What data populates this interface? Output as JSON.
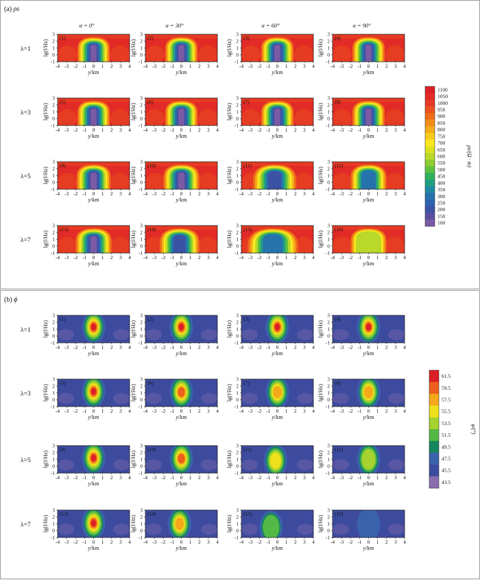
{
  "chart_data": [
    {
      "type": "heatmap",
      "panel": "(a)",
      "title": "ρs",
      "column_titles": [
        "α = 0°",
        "α = 30°",
        "α = 60°",
        "α = 90°"
      ],
      "row_labels": [
        "λ=1",
        "λ=3",
        "λ=5",
        "λ=7"
      ],
      "subplot_labels": [
        "(1)",
        "(2)",
        "(3)",
        "(4)",
        "(5)",
        "(6)",
        "(7)",
        "(8)",
        "(9)",
        "(10)",
        "(11)",
        "(12)",
        "(13)",
        "(14)",
        "(15)",
        "(16)"
      ],
      "xlabel": "y/km",
      "ylabel": "lg(f/Hz)",
      "xticks": [
        "-4",
        "-3",
        "-2",
        "-1",
        "0",
        "1",
        "2",
        "3",
        "4"
      ],
      "yticks": [
        "-1",
        "0",
        "1",
        "2",
        "3"
      ],
      "xlim": [
        -4,
        4
      ],
      "ylim": [
        -1,
        3
      ],
      "colorbar": {
        "label": "ρs/(Ω · m)",
        "ticks": [
          "100",
          "150",
          "200",
          "250",
          "300",
          "350",
          "400",
          "450",
          "500",
          "550",
          "600",
          "650",
          "700",
          "750",
          "800",
          "850",
          "900",
          "950",
          "1000",
          "1050",
          "1100"
        ],
        "colors": [
          "#7b5aa6",
          "#5b4fa0",
          "#3c52a4",
          "#2c62b0",
          "#2672ad",
          "#1f8aa0",
          "#1fa080",
          "#2eb25c",
          "#5cc040",
          "#8dcc32",
          "#b9d828",
          "#dde21e",
          "#fbe81e",
          "#f8cc1c",
          "#f5ad1a",
          "#f28d18",
          "#ee6d18",
          "#eb5220",
          "#e63a24",
          "#e22a26",
          "#dc1f26"
        ]
      },
      "subplots": [
        {
          "label": "(1)",
          "min_value": 100,
          "max_value": 1100,
          "anomaly_center_y": 0,
          "anomaly_halfwidth_km": 1.8
        },
        {
          "label": "(2)",
          "min_value": 100,
          "max_value": 1100,
          "anomaly_center_y": 0,
          "anomaly_halfwidth_km": 1.8
        },
        {
          "label": "(3)",
          "min_value": 100,
          "max_value": 1100,
          "anomaly_center_y": 0,
          "anomaly_halfwidth_km": 1.8
        },
        {
          "label": "(4)",
          "min_value": 100,
          "max_value": 1100,
          "anomaly_center_y": 0,
          "anomaly_halfwidth_km": 1.8
        },
        {
          "label": "(5)",
          "min_value": 100,
          "max_value": 1100,
          "anomaly_center_y": 0,
          "anomaly_halfwidth_km": 1.8
        },
        {
          "label": "(6)",
          "min_value": 100,
          "max_value": 1100,
          "anomaly_center_y": 0,
          "anomaly_halfwidth_km": 1.8
        },
        {
          "label": "(7)",
          "min_value": 100,
          "max_value": 1100,
          "anomaly_center_y": 0,
          "anomaly_halfwidth_km": 1.8
        },
        {
          "label": "(8)",
          "min_value": 100,
          "max_value": 1100,
          "anomaly_center_y": 0,
          "anomaly_halfwidth_km": 1.8
        },
        {
          "label": "(9)",
          "min_value": 100,
          "max_value": 1100,
          "anomaly_center_y": 0,
          "anomaly_halfwidth_km": 1.9
        },
        {
          "label": "(10)",
          "min_value": 100,
          "max_value": 1100,
          "anomaly_center_y": 0,
          "anomaly_halfwidth_km": 2.0
        },
        {
          "label": "(11)",
          "min_value": 200,
          "max_value": 1100,
          "anomaly_center_y": -0.3,
          "anomaly_halfwidth_km": 2.4
        },
        {
          "label": "(12)",
          "min_value": 300,
          "max_value": 1100,
          "anomaly_center_y": 0,
          "anomaly_halfwidth_km": 2.0
        },
        {
          "label": "(13)",
          "min_value": 100,
          "max_value": 1100,
          "anomaly_center_y": 0,
          "anomaly_halfwidth_km": 2.0
        },
        {
          "label": "(14)",
          "min_value": 200,
          "max_value": 1100,
          "anomaly_center_y": -0.2,
          "anomaly_halfwidth_km": 2.2
        },
        {
          "label": "(15)",
          "min_value": 300,
          "max_value": 1100,
          "anomaly_center_y": -0.5,
          "anomaly_halfwidth_km": 2.8
        },
        {
          "label": "(16)",
          "min_value": 600,
          "max_value": 1100,
          "anomaly_center_y": 0,
          "anomaly_halfwidth_km": 2.0
        }
      ]
    },
    {
      "type": "heatmap",
      "panel": "(b)",
      "title": "ϕ",
      "column_titles": [
        "α = 0°",
        "α = 30°",
        "α = 60°",
        "α = 90°"
      ],
      "row_labels": [
        "λ=1",
        "λ=3",
        "λ=5",
        "λ=7"
      ],
      "subplot_labels": [
        "(1)",
        "(2)",
        "(3)",
        "(4)",
        "(5)",
        "(6)",
        "(7)",
        "(8)",
        "(9)",
        "(10)",
        "(11)",
        "(12)",
        "(13)",
        "(14)",
        "(15)",
        "(16)"
      ],
      "xlabel": "y/km",
      "ylabel": "lg(f/Hz)",
      "xticks": [
        "-4",
        "-3",
        "-2",
        "-1",
        "0",
        "1",
        "2",
        "3",
        "4"
      ],
      "yticks": [
        "-1",
        "0",
        "1",
        "2",
        "3"
      ],
      "xlim": [
        -4,
        4
      ],
      "ylim": [
        -1,
        3
      ],
      "colorbar": {
        "label": "φ/(°)",
        "ticks": [
          "43.5",
          "45.5",
          "47.5",
          "49.5",
          "51.5",
          "53.5",
          "55.5",
          "57.5",
          "59.5",
          "61.5"
        ],
        "colors": [
          "#8a6fb0",
          "#3d4b9f",
          "#3a62ac",
          "#17865e",
          "#53b946",
          "#a6d22d",
          "#ece11a",
          "#f5a81a",
          "#ec5f1c",
          "#dc1f26"
        ]
      },
      "subplots": [
        {
          "label": "(1)",
          "peak_value": 61.5,
          "peak_lgf": 1.6,
          "anomaly_center_y": 0
        },
        {
          "label": "(2)",
          "peak_value": 61.5,
          "peak_lgf": 1.6,
          "anomaly_center_y": 0
        },
        {
          "label": "(3)",
          "peak_value": 61.5,
          "peak_lgf": 1.6,
          "anomaly_center_y": 0
        },
        {
          "label": "(4)",
          "peak_value": 61.5,
          "peak_lgf": 1.6,
          "anomaly_center_y": 0
        },
        {
          "label": "(5)",
          "peak_value": 61.5,
          "peak_lgf": 1.5,
          "anomaly_center_y": 0
        },
        {
          "label": "(6)",
          "peak_value": 60.5,
          "peak_lgf": 1.4,
          "anomaly_center_y": 0
        },
        {
          "label": "(7)",
          "peak_value": 58.5,
          "peak_lgf": 1.4,
          "anomaly_center_y": 0
        },
        {
          "label": "(8)",
          "peak_value": 57.5,
          "peak_lgf": 1.4,
          "anomaly_center_y": 0
        },
        {
          "label": "(9)",
          "peak_value": 61.5,
          "peak_lgf": 1.5,
          "anomaly_center_y": 0
        },
        {
          "label": "(10)",
          "peak_value": 60.0,
          "peak_lgf": 1.4,
          "anomaly_center_y": 0
        },
        {
          "label": "(11)",
          "peak_value": 55.5,
          "peak_lgf": 1.1,
          "anomaly_center_y": -0.2
        },
        {
          "label": "(12)",
          "peak_value": 53.5,
          "peak_lgf": 1.3,
          "anomaly_center_y": 0
        },
        {
          "label": "(13)",
          "peak_value": 61.5,
          "peak_lgf": 1.4,
          "anomaly_center_y": 0
        },
        {
          "label": "(14)",
          "peak_value": 58.0,
          "peak_lgf": 1.3,
          "anomaly_center_y": -0.2
        },
        {
          "label": "(15)",
          "peak_value": 52.5,
          "peak_lgf": 0.8,
          "anomaly_center_y": -0.7
        },
        {
          "label": "(16)",
          "peak_value": 48.5,
          "peak_lgf": 1.2,
          "anomaly_center_y": 0
        }
      ]
    }
  ]
}
